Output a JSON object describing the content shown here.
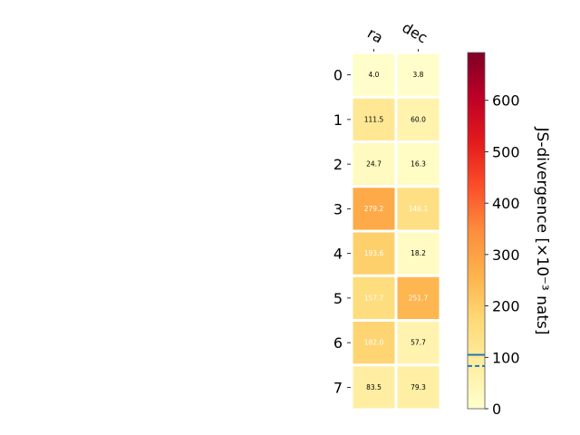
{
  "chart_data": {
    "type": "heatmap",
    "columns": [
      "ra",
      "dec"
    ],
    "rows": [
      "0",
      "1",
      "2",
      "3",
      "4",
      "5",
      "6",
      "7"
    ],
    "values": [
      [
        4.0,
        3.8
      ],
      [
        111.5,
        60.0
      ],
      [
        24.7,
        16.3
      ],
      [
        279.2,
        146.1
      ],
      [
        193.6,
        18.2
      ],
      [
        157.7,
        251.7
      ],
      [
        182.0,
        57.7
      ],
      [
        83.5,
        79.3
      ]
    ],
    "value_labels": [
      [
        "4.0",
        "3.8"
      ],
      [
        "111.5",
        "60.0"
      ],
      [
        "24.7",
        "16.3"
      ],
      [
        "279.2",
        "146.1"
      ],
      [
        "193.6",
        "18.2"
      ],
      [
        "157.7",
        "251.7"
      ],
      [
        "182.0",
        "57.7"
      ],
      [
        "83.5",
        "79.3"
      ]
    ],
    "colorbar": {
      "label": "JS-divergence [×10⁻³ nats]",
      "range": [
        0,
        693
      ],
      "ticks": [
        0,
        100,
        200,
        300,
        400,
        500,
        600
      ],
      "colormap": "YlOrRd",
      "reference_lines": [
        {
          "value": 105,
          "style": "solid",
          "color": "#1f77b4"
        },
        {
          "value": 83,
          "style": "dashed",
          "color": "#1f77b4"
        }
      ]
    },
    "legend": "none",
    "grid": false
  }
}
